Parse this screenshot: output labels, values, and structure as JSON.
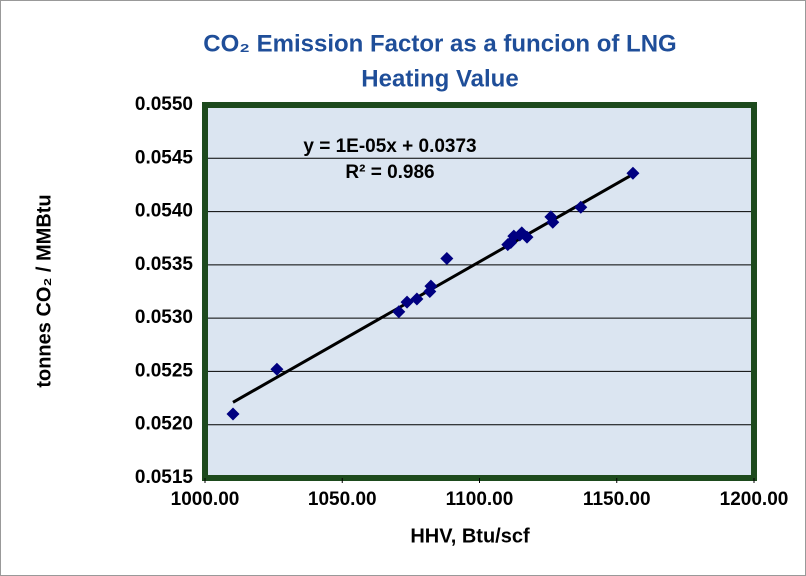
{
  "chart_data": {
    "type": "scatter",
    "title": [
      "CO₂ Emission Factor as a funcion of LNG",
      "Heating Value"
    ],
    "x_label": "HHV, Btu/scf",
    "y_label": "tonnes CO₂ / MMBtu",
    "annotations": [
      "y = 1E-05x + 0.0373",
      "R² = 0.986"
    ],
    "xlim": [
      1000,
      1200
    ],
    "xticks": [
      {
        "value": 1000,
        "label": "1000.00"
      },
      {
        "value": 1050,
        "label": "1050.00"
      },
      {
        "value": 1100,
        "label": "1100.00"
      },
      {
        "value": 1150,
        "label": "1150.00"
      },
      {
        "value": 1200,
        "label": "1200.00"
      }
    ],
    "ylim": [
      0.0515,
      0.055
    ],
    "yticks": [
      {
        "value": 0.0515,
        "label": "0.0515"
      },
      {
        "value": 0.052,
        "label": "0.0520"
      },
      {
        "value": 0.0525,
        "label": "0.0525"
      },
      {
        "value": 0.053,
        "label": "0.0530"
      },
      {
        "value": 0.0535,
        "label": "0.0535"
      },
      {
        "value": 0.054,
        "label": "0.0540"
      },
      {
        "value": 0.0545,
        "label": "0.0545"
      },
      {
        "value": 0.055,
        "label": "0.0550"
      }
    ],
    "grid": true,
    "color": "#000080",
    "x": [
      1010.2,
      1026.2,
      1070.6,
      1073.6,
      1077.2,
      1081.9,
      1082.3,
      1088.1,
      1110.3,
      1111.4,
      1112.5,
      1114.7,
      1115.4,
      1117.3,
      1126.0,
      1126.7,
      1136.9,
      1155.9
    ],
    "values": [
      0.0521,
      0.05252,
      0.05306,
      0.05315,
      0.05318,
      0.05325,
      0.0533,
      0.05356,
      0.05369,
      0.05371,
      0.05377,
      0.05378,
      0.0538,
      0.05376,
      0.05395,
      0.0539,
      0.05404,
      0.05436
    ],
    "trendline": {
      "x": [
        1010.2,
        1155.9
      ],
      "values": [
        0.05221,
        0.05435
      ],
      "color": "#000000"
    }
  }
}
